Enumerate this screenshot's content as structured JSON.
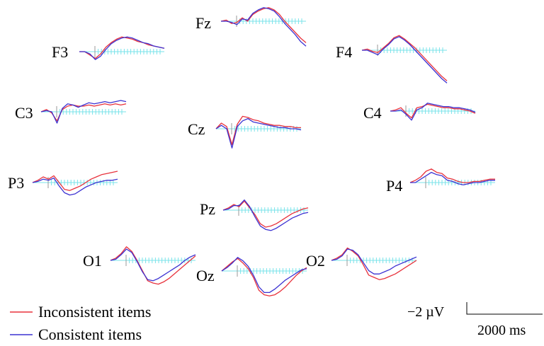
{
  "colors": {
    "inconsistent": "#e8323c",
    "consistent": "#3c32d2",
    "axis": "#79e3ea",
    "scale": "#000000"
  },
  "chart_data": {
    "type": "line",
    "title": "",
    "series": [
      {
        "name": "Inconsistent items",
        "key": "inconsistent"
      },
      {
        "name": "Consistent items",
        "key": "consistent"
      }
    ],
    "x_unit": "ms",
    "scale_bar": {
      "amplitude_label": "−2 µV",
      "time_label": "2000 ms"
    },
    "electrodes": [
      {
        "name": "Fz",
        "inconsistent": [
          0,
          1,
          -2,
          -1,
          3,
          0,
          6,
          9,
          11,
          12,
          10,
          6,
          0,
          -5,
          -10,
          -15,
          -19
        ],
        "consistent": [
          0,
          0,
          -1,
          -3,
          2,
          1,
          7,
          10,
          12,
          11,
          9,
          4,
          -2,
          -7,
          -12,
          -18,
          -22
        ]
      },
      {
        "name": "F3",
        "inconsistent": [
          0,
          0,
          -3,
          -6,
          -2,
          4,
          8,
          11,
          13,
          12,
          11,
          9,
          8,
          6,
          5,
          4,
          3
        ],
        "consistent": [
          0,
          0,
          -2,
          -7,
          -4,
          2,
          7,
          10,
          12,
          13,
          12,
          10,
          8,
          7,
          5,
          4,
          3
        ]
      },
      {
        "name": "F4",
        "inconsistent": [
          0,
          1,
          -1,
          -2,
          2,
          6,
          11,
          13,
          10,
          6,
          2,
          -3,
          -8,
          -13,
          -18,
          -23,
          -27
        ],
        "consistent": [
          0,
          0,
          -2,
          -4,
          1,
          5,
          10,
          12,
          9,
          5,
          0,
          -5,
          -10,
          -15,
          -20,
          -25,
          -29
        ]
      },
      {
        "name": "C3",
        "inconsistent": [
          0,
          2,
          -1,
          -8,
          2,
          5,
          6,
          5,
          5,
          6,
          5,
          6,
          7,
          6,
          7,
          6,
          7
        ],
        "consistent": [
          0,
          1,
          0,
          -10,
          3,
          7,
          6,
          4,
          6,
          8,
          7,
          8,
          9,
          8,
          9,
          10,
          9
        ]
      },
      {
        "name": "C4",
        "inconsistent": [
          0,
          1,
          3,
          -2,
          -6,
          3,
          4,
          6,
          5,
          4,
          3,
          3,
          2,
          2,
          1,
          0,
          -2
        ],
        "consistent": [
          0,
          0,
          1,
          -3,
          -8,
          1,
          3,
          7,
          6,
          5,
          4,
          4,
          3,
          3,
          2,
          1,
          -1
        ]
      },
      {
        "name": "Cz",
        "inconsistent": [
          0,
          5,
          2,
          -14,
          4,
          11,
          10,
          8,
          7,
          5,
          4,
          3,
          3,
          2,
          2,
          1,
          1
        ],
        "consistent": [
          0,
          3,
          0,
          -17,
          2,
          7,
          9,
          6,
          5,
          4,
          3,
          2,
          1,
          1,
          0,
          0,
          -1
        ]
      },
      {
        "name": "P3",
        "inconsistent": [
          0,
          2,
          5,
          3,
          6,
          0,
          -6,
          -7,
          -5,
          -3,
          0,
          3,
          5,
          7,
          8,
          9,
          10
        ],
        "consistent": [
          0,
          1,
          3,
          2,
          4,
          -3,
          -9,
          -11,
          -10,
          -7,
          -4,
          -2,
          0,
          1,
          2,
          2,
          3
        ]
      },
      {
        "name": "P4",
        "inconsistent": [
          0,
          2,
          5,
          10,
          12,
          9,
          8,
          4,
          3,
          1,
          0,
          0,
          1,
          1,
          2,
          3,
          3
        ],
        "consistent": [
          0,
          0,
          3,
          6,
          9,
          7,
          6,
          2,
          1,
          -1,
          -2,
          -1,
          0,
          0,
          1,
          2,
          2
        ]
      },
      {
        "name": "Pz",
        "inconsistent": [
          0,
          2,
          5,
          3,
          8,
          2,
          -4,
          -12,
          -15,
          -14,
          -12,
          -9,
          -6,
          -3,
          -1,
          1,
          2
        ],
        "consistent": [
          0,
          1,
          4,
          4,
          9,
          3,
          -6,
          -14,
          -17,
          -18,
          -16,
          -13,
          -10,
          -7,
          -5,
          -3,
          -2
        ]
      },
      {
        "name": "O1",
        "inconsistent": [
          0,
          2,
          6,
          12,
          8,
          0,
          -9,
          -18,
          -20,
          -21,
          -19,
          -16,
          -12,
          -8,
          -4,
          0,
          4
        ],
        "consistent": [
          0,
          1,
          5,
          10,
          7,
          -1,
          -10,
          -17,
          -18,
          -16,
          -13,
          -10,
          -7,
          -4,
          0,
          3,
          5
        ]
      },
      {
        "name": "Oz",
        "inconsistent": [
          0,
          4,
          8,
          11,
          7,
          2,
          -6,
          -17,
          -21,
          -22,
          -21,
          -18,
          -14,
          -9,
          -4,
          0,
          3
        ],
        "consistent": [
          0,
          3,
          7,
          12,
          9,
          4,
          -4,
          -14,
          -19,
          -19,
          -16,
          -12,
          -8,
          -5,
          -2,
          1,
          2
        ]
      },
      {
        "name": "O2",
        "inconsistent": [
          0,
          2,
          5,
          11,
          8,
          4,
          -4,
          -13,
          -15,
          -17,
          -16,
          -14,
          -12,
          -9,
          -6,
          -3,
          0
        ],
        "consistent": [
          0,
          1,
          4,
          10,
          9,
          5,
          -2,
          -9,
          -12,
          -12,
          -10,
          -8,
          -5,
          -3,
          -1,
          1,
          3
        ]
      }
    ]
  }
}
